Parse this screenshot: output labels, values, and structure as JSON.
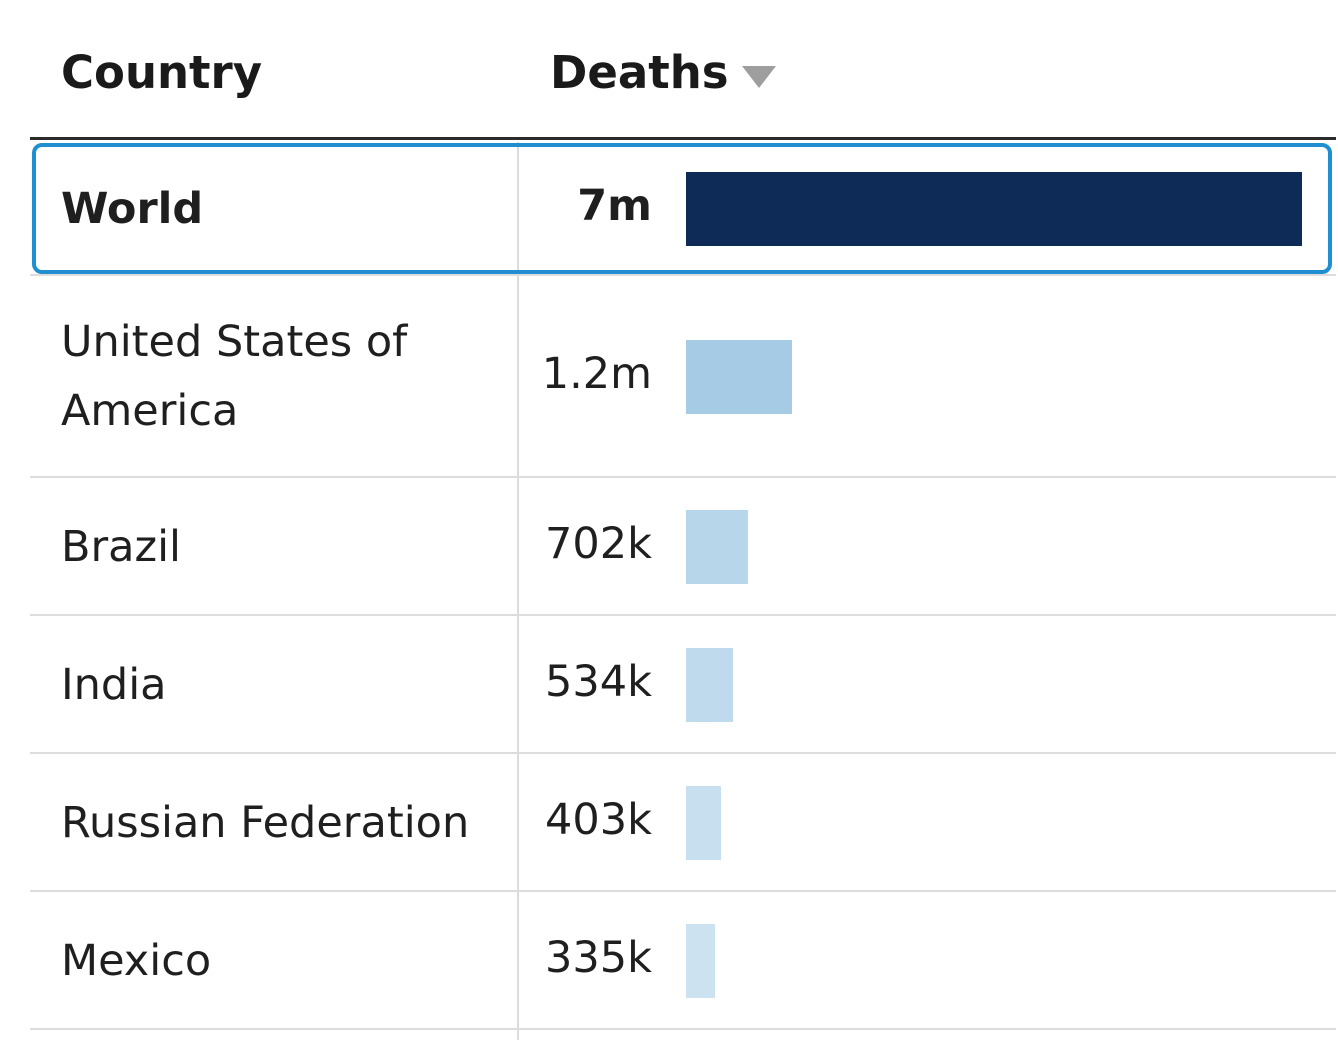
{
  "header": {
    "country_label": "Country",
    "deaths_label": "Deaths",
    "sort_icon": "sort-desc-triangle"
  },
  "rows": [
    {
      "country": "World",
      "display": "7m",
      "value": 7000000,
      "bar_color": "#0e2a57",
      "selected": true
    },
    {
      "country": "United States of America",
      "display": "1.2m",
      "value": 1200000,
      "bar_color": "#a6cbe4",
      "selected": false
    },
    {
      "country": "Brazil",
      "display": "702k",
      "value": 702000,
      "bar_color": "#b8d6ea",
      "selected": false
    },
    {
      "country": "India",
      "display": "534k",
      "value": 534000,
      "bar_color": "#c0daed",
      "selected": false
    },
    {
      "country": "Russian Federation",
      "display": "403k",
      "value": 403000,
      "bar_color": "#c8dfef",
      "selected": false
    },
    {
      "country": "Mexico",
      "display": "335k",
      "value": 335000,
      "bar_color": "#cde2f1",
      "selected": false
    }
  ],
  "colors": {
    "selection_outline": "#1f8fd0",
    "header_rule": "#2b2b2b"
  }
}
